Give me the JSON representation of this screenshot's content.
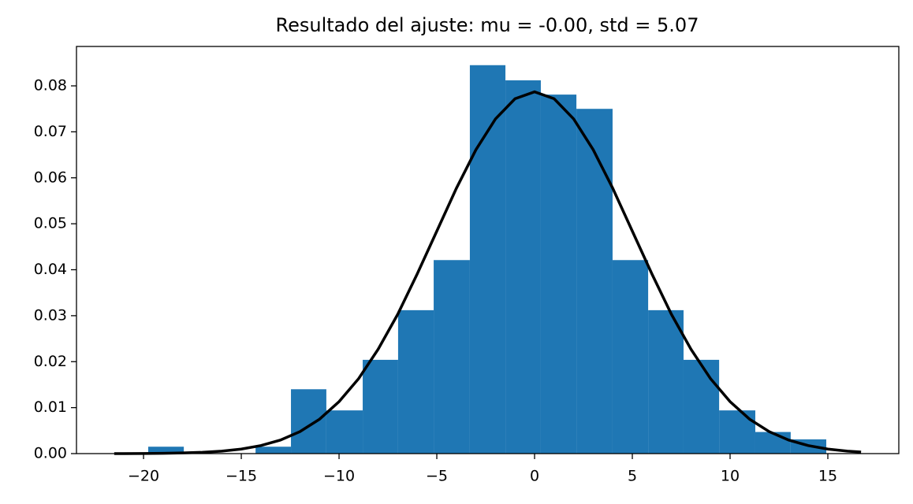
{
  "chart_data": {
    "type": "histogram",
    "title": "Resultado del ajuste: mu = -0.00,  std = 5.07",
    "bins": [
      -19.76,
      -17.94,
      -16.13,
      -14.27,
      -12.46,
      -10.65,
      -8.79,
      -6.98,
      -5.16,
      -3.31,
      -1.49,
      0.32,
      2.14,
      3.99,
      5.81,
      7.62,
      9.44,
      11.29,
      13.1,
      14.92
    ],
    "values": [
      0.0015,
      0,
      0,
      0.0015,
      0.014,
      0.0094,
      0.0204,
      0.0312,
      0.0421,
      0.0845,
      0.0812,
      0.0781,
      0.075,
      0.0421,
      0.0312,
      0.0204,
      0.0094,
      0.0047,
      0.0031
    ],
    "color": "#1f77b4",
    "curve": {
      "color": "#000000",
      "x": [
        -21.5,
        -21,
        -20,
        -19,
        -18,
        -17,
        -16,
        -15,
        -14,
        -13,
        -12,
        -11,
        -10,
        -9,
        -8,
        -7,
        -6,
        -5,
        -4,
        -3,
        -2,
        -1,
        0,
        1,
        2,
        3,
        4,
        5,
        6,
        7,
        8,
        9,
        10,
        11,
        12,
        13,
        14,
        15,
        16,
        16.7
      ],
      "y": [
        1e-05,
        1e-05,
        3e-05,
        7e-05,
        0.00014,
        0.00028,
        0.00054,
        0.00099,
        0.00174,
        0.00294,
        0.00478,
        0.00748,
        0.0113,
        0.0163,
        0.0227,
        0.0303,
        0.0391,
        0.0484,
        0.0577,
        0.0661,
        0.0728,
        0.0772,
        0.0787,
        0.0772,
        0.0728,
        0.0661,
        0.0577,
        0.0484,
        0.0391,
        0.0303,
        0.0227,
        0.0163,
        0.0113,
        0.00748,
        0.00478,
        0.00294,
        0.00174,
        0.00099,
        0.00054,
        0.00035
      ]
    },
    "xlim": [
      -23.43,
      18.63
    ],
    "ylim": [
      0,
      0.08857
    ],
    "xticks": [
      {
        "value": -20,
        "label": "−20"
      },
      {
        "value": -15,
        "label": "−15"
      },
      {
        "value": -10,
        "label": "−10"
      },
      {
        "value": -5,
        "label": "−5"
      },
      0,
      5,
      10,
      15
    ],
    "yticks": [
      {
        "value": 0,
        "label": "0.00"
      },
      {
        "value": 0.01,
        "label": "0.01"
      },
      {
        "value": 0.02,
        "label": "0.02"
      },
      {
        "value": 0.03,
        "label": "0.03"
      },
      {
        "value": 0.04,
        "label": "0.04"
      },
      {
        "value": 0.05,
        "label": "0.05"
      },
      {
        "value": 0.06,
        "label": "0.06"
      },
      {
        "value": 0.07,
        "label": "0.07"
      },
      {
        "value": 0.08,
        "label": "0.08"
      }
    ]
  }
}
